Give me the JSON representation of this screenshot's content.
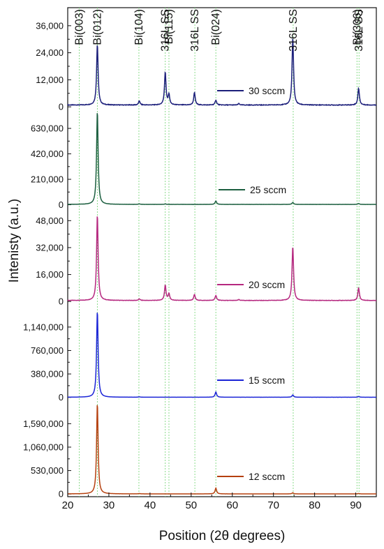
{
  "chart_data": {
    "type": "line",
    "xlabel": "Position (2θ degrees)",
    "ylabel": "Intenisty (a.u.)",
    "xlim": [
      20,
      95
    ],
    "xticks": [
      20,
      30,
      40,
      50,
      60,
      70,
      80,
      90
    ],
    "xtick_labels": [
      "20",
      "30",
      "40",
      "50",
      "60",
      "70",
      "80",
      "90"
    ],
    "reference_lines": [
      {
        "x": 22.8,
        "label": "Bi(003)"
      },
      {
        "x": 27.2,
        "label": "Bi(012)"
      },
      {
        "x": 37.3,
        "label": "Bi(104)"
      },
      {
        "x": 43.7,
        "label": "316L SS"
      },
      {
        "x": 44.6,
        "label": "Bi(115)"
      },
      {
        "x": 50.9,
        "label": "316L SS"
      },
      {
        "x": 56.0,
        "label": "Bi(024)"
      },
      {
        "x": 74.8,
        "label": "316L SS"
      },
      {
        "x": 90.3,
        "label": "Bi(306)"
      },
      {
        "x": 90.8,
        "label": "316L SS"
      }
    ],
    "panels": [
      {
        "name": "30 sccm",
        "color": "#1b1e7a",
        "ylim": [
          -1500,
          44000
        ],
        "yticks": [
          0,
          12000,
          24000,
          36000
        ],
        "ytick_labels": [
          "0",
          "12,000",
          "24,000",
          "36,000"
        ],
        "baseline": 800,
        "peaks": [
          [
            27.2,
            27000
          ],
          [
            37.4,
            1800
          ],
          [
            43.7,
            14500
          ],
          [
            44.6,
            4500
          ],
          [
            50.8,
            5500
          ],
          [
            56.0,
            2200
          ],
          [
            61.6,
            600
          ],
          [
            74.7,
            30000
          ],
          [
            90.7,
            7500
          ]
        ]
      },
      {
        "name": "25 sccm",
        "color": "#1b5e3f",
        "ylim": [
          -20000,
          780000
        ],
        "yticks": [
          0,
          210000,
          420000,
          630000
        ],
        "ytick_labels": [
          "0",
          "210,000",
          "420,000",
          "630,000"
        ],
        "baseline": 3000,
        "peaks": [
          [
            27.2,
            770000
          ],
          [
            37.4,
            4000
          ],
          [
            43.7,
            4000
          ],
          [
            56.0,
            28000
          ],
          [
            74.7,
            16000
          ],
          [
            90.7,
            7000
          ]
        ]
      },
      {
        "name": "20 sccm",
        "color": "#b5287f",
        "ylim": [
          -2000,
          56000
        ],
        "yticks": [
          0,
          16000,
          32000,
          48000
        ],
        "ytick_labels": [
          "0",
          "16,000",
          "32,000",
          "48,000"
        ],
        "baseline": 600,
        "peaks": [
          [
            27.2,
            51000
          ],
          [
            37.4,
            900
          ],
          [
            43.7,
            9000
          ],
          [
            44.6,
            4000
          ],
          [
            50.8,
            3500
          ],
          [
            56.0,
            3000
          ],
          [
            61.6,
            500
          ],
          [
            74.7,
            32000
          ],
          [
            90.7,
            7500
          ]
        ]
      },
      {
        "name": "15 sccm",
        "color": "#1a24d6",
        "ylim": [
          -60000,
          1500000
        ],
        "yticks": [
          0,
          380000,
          760000,
          1140000
        ],
        "ytick_labels": [
          "0",
          "380,000",
          "760,000",
          "1,140,000"
        ],
        "baseline": 3000,
        "peaks": [
          [
            27.2,
            1400000
          ],
          [
            37.4,
            6000
          ],
          [
            56.0,
            85000
          ],
          [
            74.7,
            38000
          ],
          [
            90.7,
            12000
          ]
        ]
      },
      {
        "name": "12 sccm",
        "color": "#b5400f",
        "ylim": [
          -60000,
          2100000
        ],
        "yticks": [
          0,
          530000,
          1060000,
          1590000
        ],
        "ytick_labels": [
          "0",
          "530,000",
          "1,060,000",
          "1,590,000"
        ],
        "baseline": 3000,
        "peaks": [
          [
            27.2,
            2050000
          ],
          [
            37.4,
            8000
          ],
          [
            56.0,
            130000
          ],
          [
            74.7,
            25000
          ],
          [
            90.7,
            9000
          ]
        ]
      }
    ],
    "grid": false
  }
}
